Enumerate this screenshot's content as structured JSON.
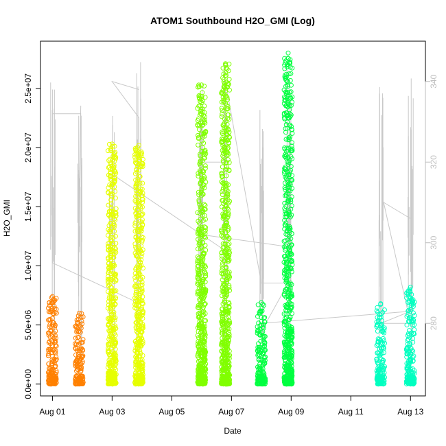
{
  "chart_data": {
    "type": "scatter",
    "title": "ATOM1 Southbound H2O_GMI (Log)",
    "xlabel": "Date",
    "ylabel": "H2O_GMI",
    "x_ticks": [
      "Aug 01",
      "Aug 03",
      "Aug 05",
      "Aug 07",
      "Aug 09",
      "Aug 11",
      "Aug 13"
    ],
    "x_tick_days": [
      1,
      3,
      5,
      7,
      9,
      11,
      13
    ],
    "xlim_days": [
      0.6,
      13.5
    ],
    "y_ticks": [
      0,
      5000000,
      10000000,
      15000000,
      20000000,
      25000000
    ],
    "y_tick_labels": [
      "0.0e+00",
      "5.0e+06",
      "1.0e+07",
      "1.5e+07",
      "2.0e+07",
      "2.5e+07"
    ],
    "ylim": [
      -1000000,
      29000000
    ],
    "y2_ticks": [
      280,
      300,
      320,
      340
    ],
    "y2_tick_labels": [
      "280",
      "300",
      "320",
      "340"
    ],
    "y2lim": [
      262,
      350
    ],
    "grid": false,
    "series": [
      {
        "color": "#ff8000",
        "points": [
          [
            1.0,
            0,
            7400000
          ],
          [
            1.9,
            0,
            6000000
          ]
        ]
      },
      {
        "color": "#e6ff00",
        "points": [
          [
            3.0,
            0,
            20300000
          ],
          [
            3.9,
            0,
            20200000
          ]
        ]
      },
      {
        "color": "#80ff00",
        "points": [
          [
            6.0,
            0,
            25300000
          ],
          [
            6.8,
            0,
            27100000
          ]
        ]
      },
      {
        "color": "#00ff40",
        "points": [
          [
            8.0,
            0,
            6900000
          ],
          [
            8.9,
            0,
            28000000
          ]
        ]
      },
      {
        "color": "#00ffc0",
        "points": [
          [
            12.0,
            0,
            6800000
          ],
          [
            13.0,
            0,
            8200000
          ]
        ]
      }
    ],
    "overlay_series": {
      "color": "#c8c8c8",
      "axis": "right",
      "segments": [
        [
          [
            1.0,
            333
          ],
          [
            1.0,
            338
          ],
          [
            1.0,
            295
          ],
          [
            1.0,
            332
          ],
          [
            1.95,
            332
          ],
          [
            1.9,
            299
          ],
          [
            1.9,
            316
          ],
          [
            1.9,
            310
          ],
          [
            1.95,
            334
          ],
          [
            1.9,
            310
          ]
        ],
        [
          [
            1.0,
            295
          ],
          [
            3.9,
            285
          ],
          [
            3.9,
            331
          ],
          [
            3.0,
            340
          ],
          [
            3.9,
            338
          ]
        ],
        [
          [
            3.0,
            317
          ],
          [
            6.8,
            298
          ],
          [
            6.0,
            302
          ],
          [
            8.9,
            299
          ],
          [
            8.9,
            320
          ]
        ],
        [
          [
            6.0,
            320
          ],
          [
            6.8,
            320
          ],
          [
            6.8,
            340
          ],
          [
            8.0,
            290
          ],
          [
            8.9,
            290
          ],
          [
            8.0,
            278
          ]
        ],
        [
          [
            8.0,
            280
          ],
          [
            13.0,
            283
          ],
          [
            12.0,
            280
          ],
          [
            13.0,
            280
          ],
          [
            12.1,
            310
          ],
          [
            13.0,
            306
          ]
        ]
      ]
    }
  }
}
